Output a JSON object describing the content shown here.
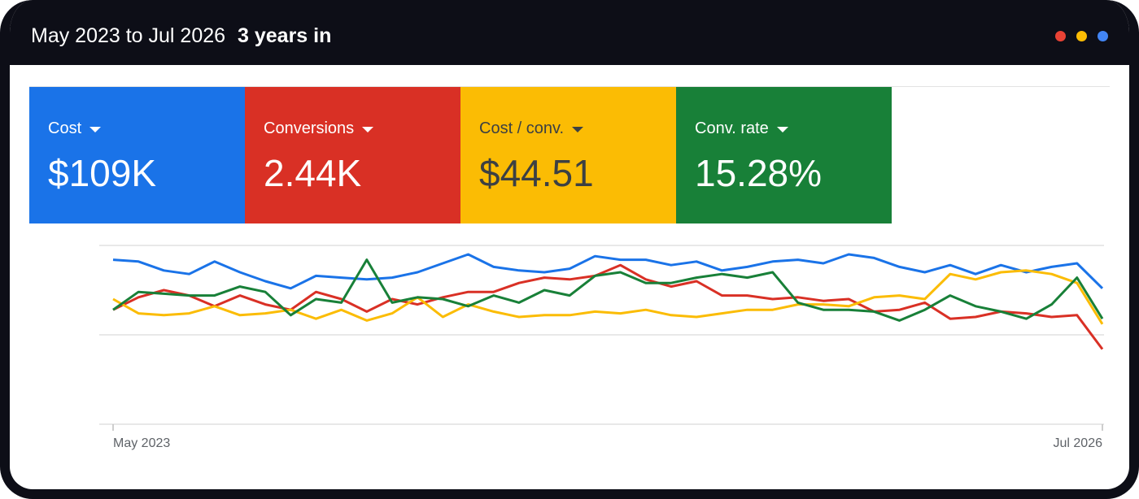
{
  "header": {
    "range": "May 2023 to Jul 2026",
    "duration": "3 years in"
  },
  "window_dots": [
    "#e94235",
    "#fbbc04",
    "#4285f4"
  ],
  "metrics": [
    {
      "label": "Cost",
      "value": "$109K",
      "bg": "#1a73e8",
      "fg": "#ffffff"
    },
    {
      "label": "Conversions",
      "value": "2.44K",
      "bg": "#d93025",
      "fg": "#ffffff"
    },
    {
      "label": "Cost / conv.",
      "value": "$44.51",
      "bg": "#fbbc04",
      "fg": "#3c4043"
    },
    {
      "label": "Conv. rate",
      "value": "15.28%",
      "bg": "#188038",
      "fg": "#ffffff"
    }
  ],
  "chart_data": {
    "type": "line",
    "x_start_label": "May 2023",
    "x_end_label": "Jul 2026",
    "ylim": [
      0,
      100
    ],
    "grid": true,
    "series": [
      {
        "metric": "Cost",
        "color": "#1a73e8",
        "values": [
          92,
          91,
          86,
          84,
          91,
          85,
          80,
          76,
          83,
          82,
          81,
          82,
          85,
          90,
          95,
          88,
          86,
          85,
          87,
          94,
          92,
          92,
          89,
          91,
          86,
          88,
          91,
          92,
          90,
          95,
          93,
          88,
          85,
          89,
          84,
          89,
          85,
          88,
          90,
          76
        ]
      },
      {
        "metric": "Conversions",
        "color": "#d93025",
        "values": [
          64,
          71,
          75,
          72,
          66,
          72,
          67,
          64,
          74,
          70,
          63,
          70,
          67,
          71,
          74,
          74,
          79,
          82,
          81,
          83,
          89,
          81,
          77,
          80,
          72,
          72,
          70,
          71,
          69,
          70,
          63,
          64,
          68,
          59,
          60,
          63,
          62,
          60,
          61,
          42
        ]
      },
      {
        "metric": "Cost / conv.",
        "color": "#fbbc04",
        "values": [
          70,
          62,
          61,
          62,
          66,
          61,
          62,
          64,
          59,
          64,
          58,
          62,
          71,
          60,
          67,
          63,
          60,
          61,
          61,
          63,
          62,
          64,
          61,
          60,
          62,
          64,
          64,
          67,
          67,
          66,
          71,
          72,
          70,
          84,
          81,
          85,
          86,
          84,
          79,
          56
        ]
      },
      {
        "metric": "Conv. rate",
        "color": "#188038",
        "values": [
          64,
          74,
          73,
          72,
          72,
          77,
          74,
          61,
          70,
          68,
          92,
          68,
          71,
          70,
          66,
          72,
          68,
          75,
          72,
          83,
          85,
          79,
          79,
          82,
          84,
          82,
          85,
          68,
          64,
          64,
          63,
          58,
          64,
          72,
          66,
          63,
          59,
          67,
          82,
          59
        ]
      }
    ]
  }
}
